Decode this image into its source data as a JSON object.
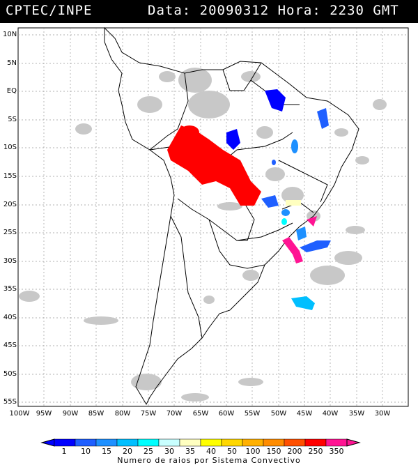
{
  "header": {
    "org": "CPTEC/INPE",
    "datetime": "Data: 20090312 Hora: 2230 GMT"
  },
  "axes": {
    "lat_labels": [
      "10N",
      "5N",
      "EQ",
      "5S",
      "10S",
      "15S",
      "20S",
      "25S",
      "30S",
      "35S",
      "40S",
      "45S",
      "50S",
      "55S"
    ],
    "lon_labels": [
      "100W",
      "95W",
      "90W",
      "85W",
      "80W",
      "75W",
      "70W",
      "65W",
      "60W",
      "55W",
      "50W",
      "45W",
      "40W",
      "35W",
      "30W"
    ]
  },
  "colorbar": {
    "labels": [
      "1",
      "10",
      "15",
      "20",
      "25",
      "30",
      "35",
      "40",
      "50",
      "100",
      "150",
      "200",
      "250",
      "350"
    ],
    "colors": [
      "#0000ff",
      "#1f5fff",
      "#1e90ff",
      "#00bfff",
      "#00ffff",
      "#c8ffff",
      "#ffffc0",
      "#ffff00",
      "#ffd700",
      "#ffb000",
      "#ff8c00",
      "#ff5000",
      "#ff0000",
      "#ff1493"
    ],
    "caption": "Numero de raios por Sistema Convectivo"
  },
  "background_cloud_color": "#c8c8c8"
}
